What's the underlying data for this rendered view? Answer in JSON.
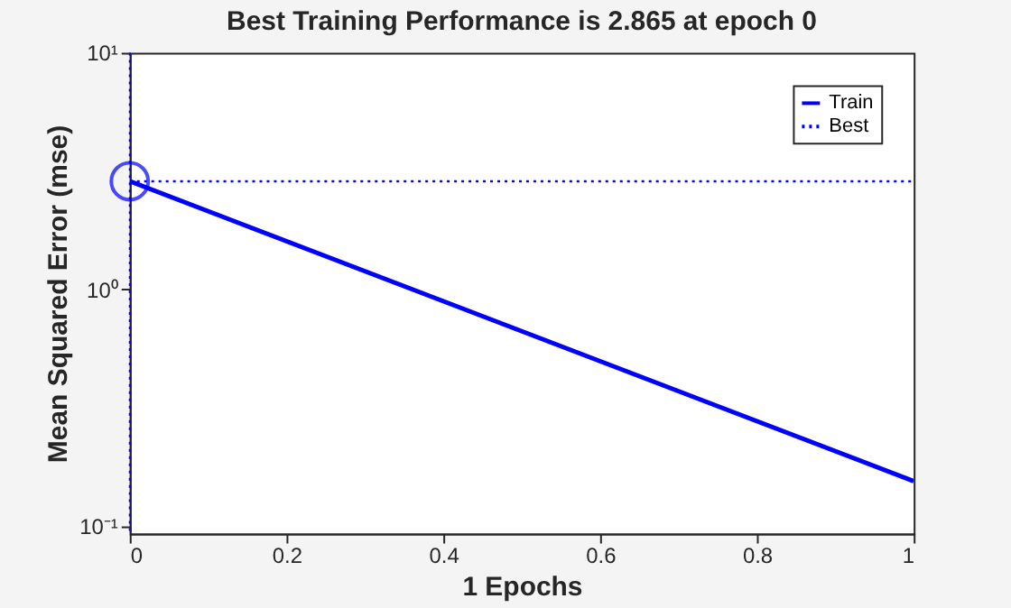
{
  "chart_data": {
    "type": "line",
    "title": "Best Training Performance is 2.865 at epoch 0",
    "xlabel": "1 Epochs",
    "ylabel": "Mean Squared Error  (mse)",
    "series": [
      {
        "name": "Train",
        "color": "#0000ff",
        "values": [
          2.865,
          0.155
        ],
        "line_style": "solid"
      },
      {
        "name": "Best",
        "color": "#0000ff",
        "values": [
          2.865,
          2.865
        ],
        "line_style": "dotted"
      },
      {
        "type": "scatter",
        "color": "#0000ff",
        "x": [
          0
        ],
        "values": [
          2.865
        ],
        "marker": "circle"
      }
    ],
    "ref_lines": [
      {
        "axis": "x",
        "value": 0,
        "color": "#0000ff",
        "line_style": "dotted"
      }
    ],
    "x": [
      0,
      1
    ],
    "log": "y",
    "xlim": [
      0,
      1
    ],
    "xticks": [
      0,
      0.2,
      0.4,
      0.6,
      0.8,
      1
    ],
    "ylim": [
      0.093,
      10
    ],
    "yticks": [
      {
        "value": 0.1,
        "label": "10⁻¹"
      },
      {
        "value": 1,
        "label": "10⁰"
      },
      {
        "value": 10,
        "label": "10¹"
      }
    ],
    "grid": false,
    "legend": "top right"
  }
}
